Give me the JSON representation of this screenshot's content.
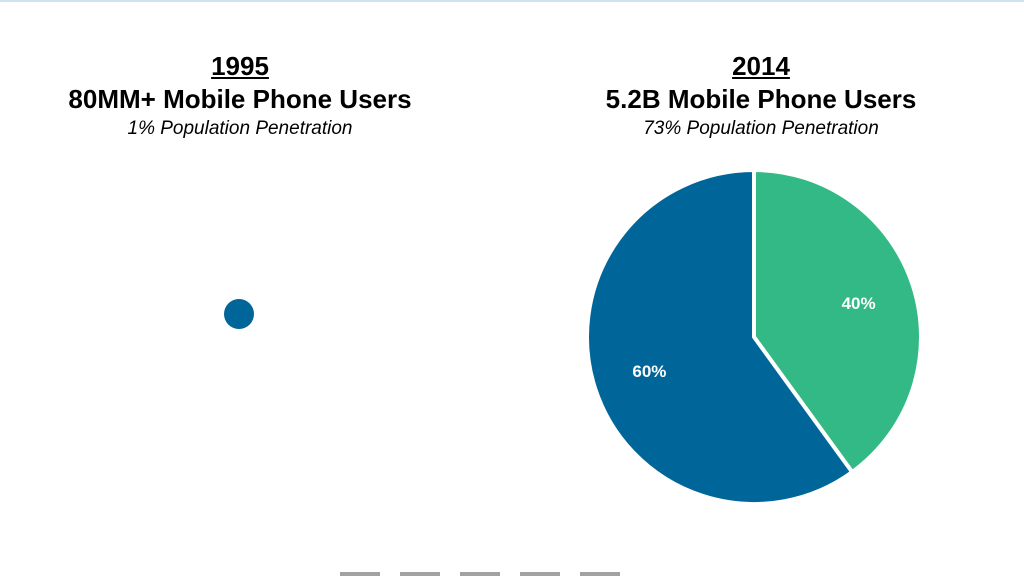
{
  "panels": [
    {
      "year": "1995",
      "users": "80MM+ Mobile Phone Users",
      "penetration": "1% Population Penetration"
    },
    {
      "year": "2014",
      "users": "5.2B Mobile Phone Users",
      "penetration": "73% Population Penetration"
    }
  ],
  "chart_data": [
    {
      "type": "pie",
      "values": [
        100
      ],
      "colors": [
        "#006699"
      ]
    },
    {
      "type": "pie",
      "values": [
        40,
        60
      ],
      "labels": [
        "40%",
        "60%"
      ],
      "colors": [
        "#33b985",
        "#006699"
      ],
      "start": "12 o'clock",
      "direction": "clockwise"
    }
  ]
}
